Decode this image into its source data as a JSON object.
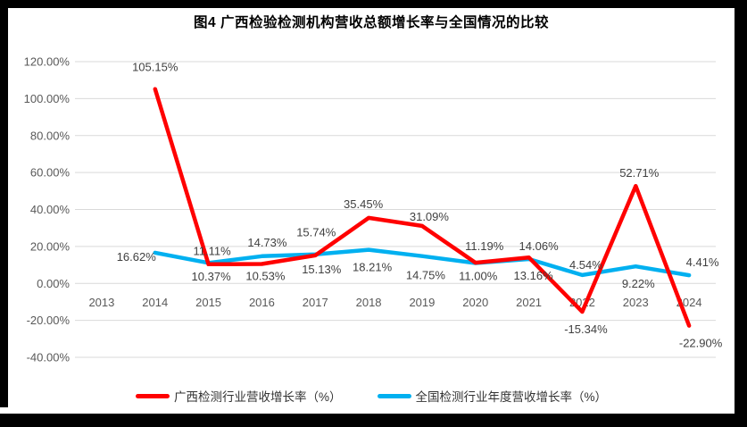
{
  "chart_data": {
    "type": "line",
    "title": "图4 广西检验检测机构营收总额增长率与全国情况的比较",
    "categories": [
      "2013",
      "2014",
      "2015",
      "2016",
      "2017",
      "2018",
      "2019",
      "2020",
      "2021",
      "2022",
      "2023",
      "2024"
    ],
    "series": [
      {
        "name": "广西检测行业营收增长率（%）",
        "color": "#FF0000",
        "values": [
          null,
          105.15,
          10.37,
          10.53,
          15.13,
          35.45,
          31.09,
          11.19,
          14.06,
          -15.34,
          52.71,
          -22.9
        ],
        "label_offsets": [
          null,
          [
            0,
            -20
          ],
          [
            3,
            18
          ],
          [
            4,
            18
          ],
          [
            7,
            20
          ],
          [
            -6,
            -11
          ],
          [
            8,
            -6
          ],
          [
            10,
            -14
          ],
          [
            11,
            -8
          ],
          [
            4,
            24
          ],
          [
            4,
            -10
          ],
          [
            13,
            24
          ]
        ]
      },
      {
        "name": "全国检测行业年度营收增长率（%）",
        "color": "#00B0F0",
        "values": [
          null,
          16.62,
          11.11,
          14.73,
          15.74,
          18.21,
          14.75,
          11.0,
          13.16,
          4.54,
          9.22,
          4.41
        ],
        "label_offsets": [
          null,
          [
            -21,
            9
          ],
          [
            4,
            -9
          ],
          [
            6,
            -11
          ],
          [
            1,
            -20
          ],
          [
            4,
            24
          ],
          [
            4,
            26
          ],
          [
            3,
            19
          ],
          [
            5,
            23
          ],
          [
            4,
            -7
          ],
          [
            3,
            24
          ],
          [
            15,
            -10
          ]
        ]
      }
    ],
    "ylim": [
      -40,
      120
    ],
    "ytick_step": 20,
    "ytick_suffix": "%",
    "grid": true,
    "legend_position": "bottom",
    "colors": {
      "gridline": "#D9D9D9",
      "axis_text": "#595959",
      "data_label": "#404040",
      "frame": "#000000",
      "background": "#FFFFFF"
    }
  }
}
